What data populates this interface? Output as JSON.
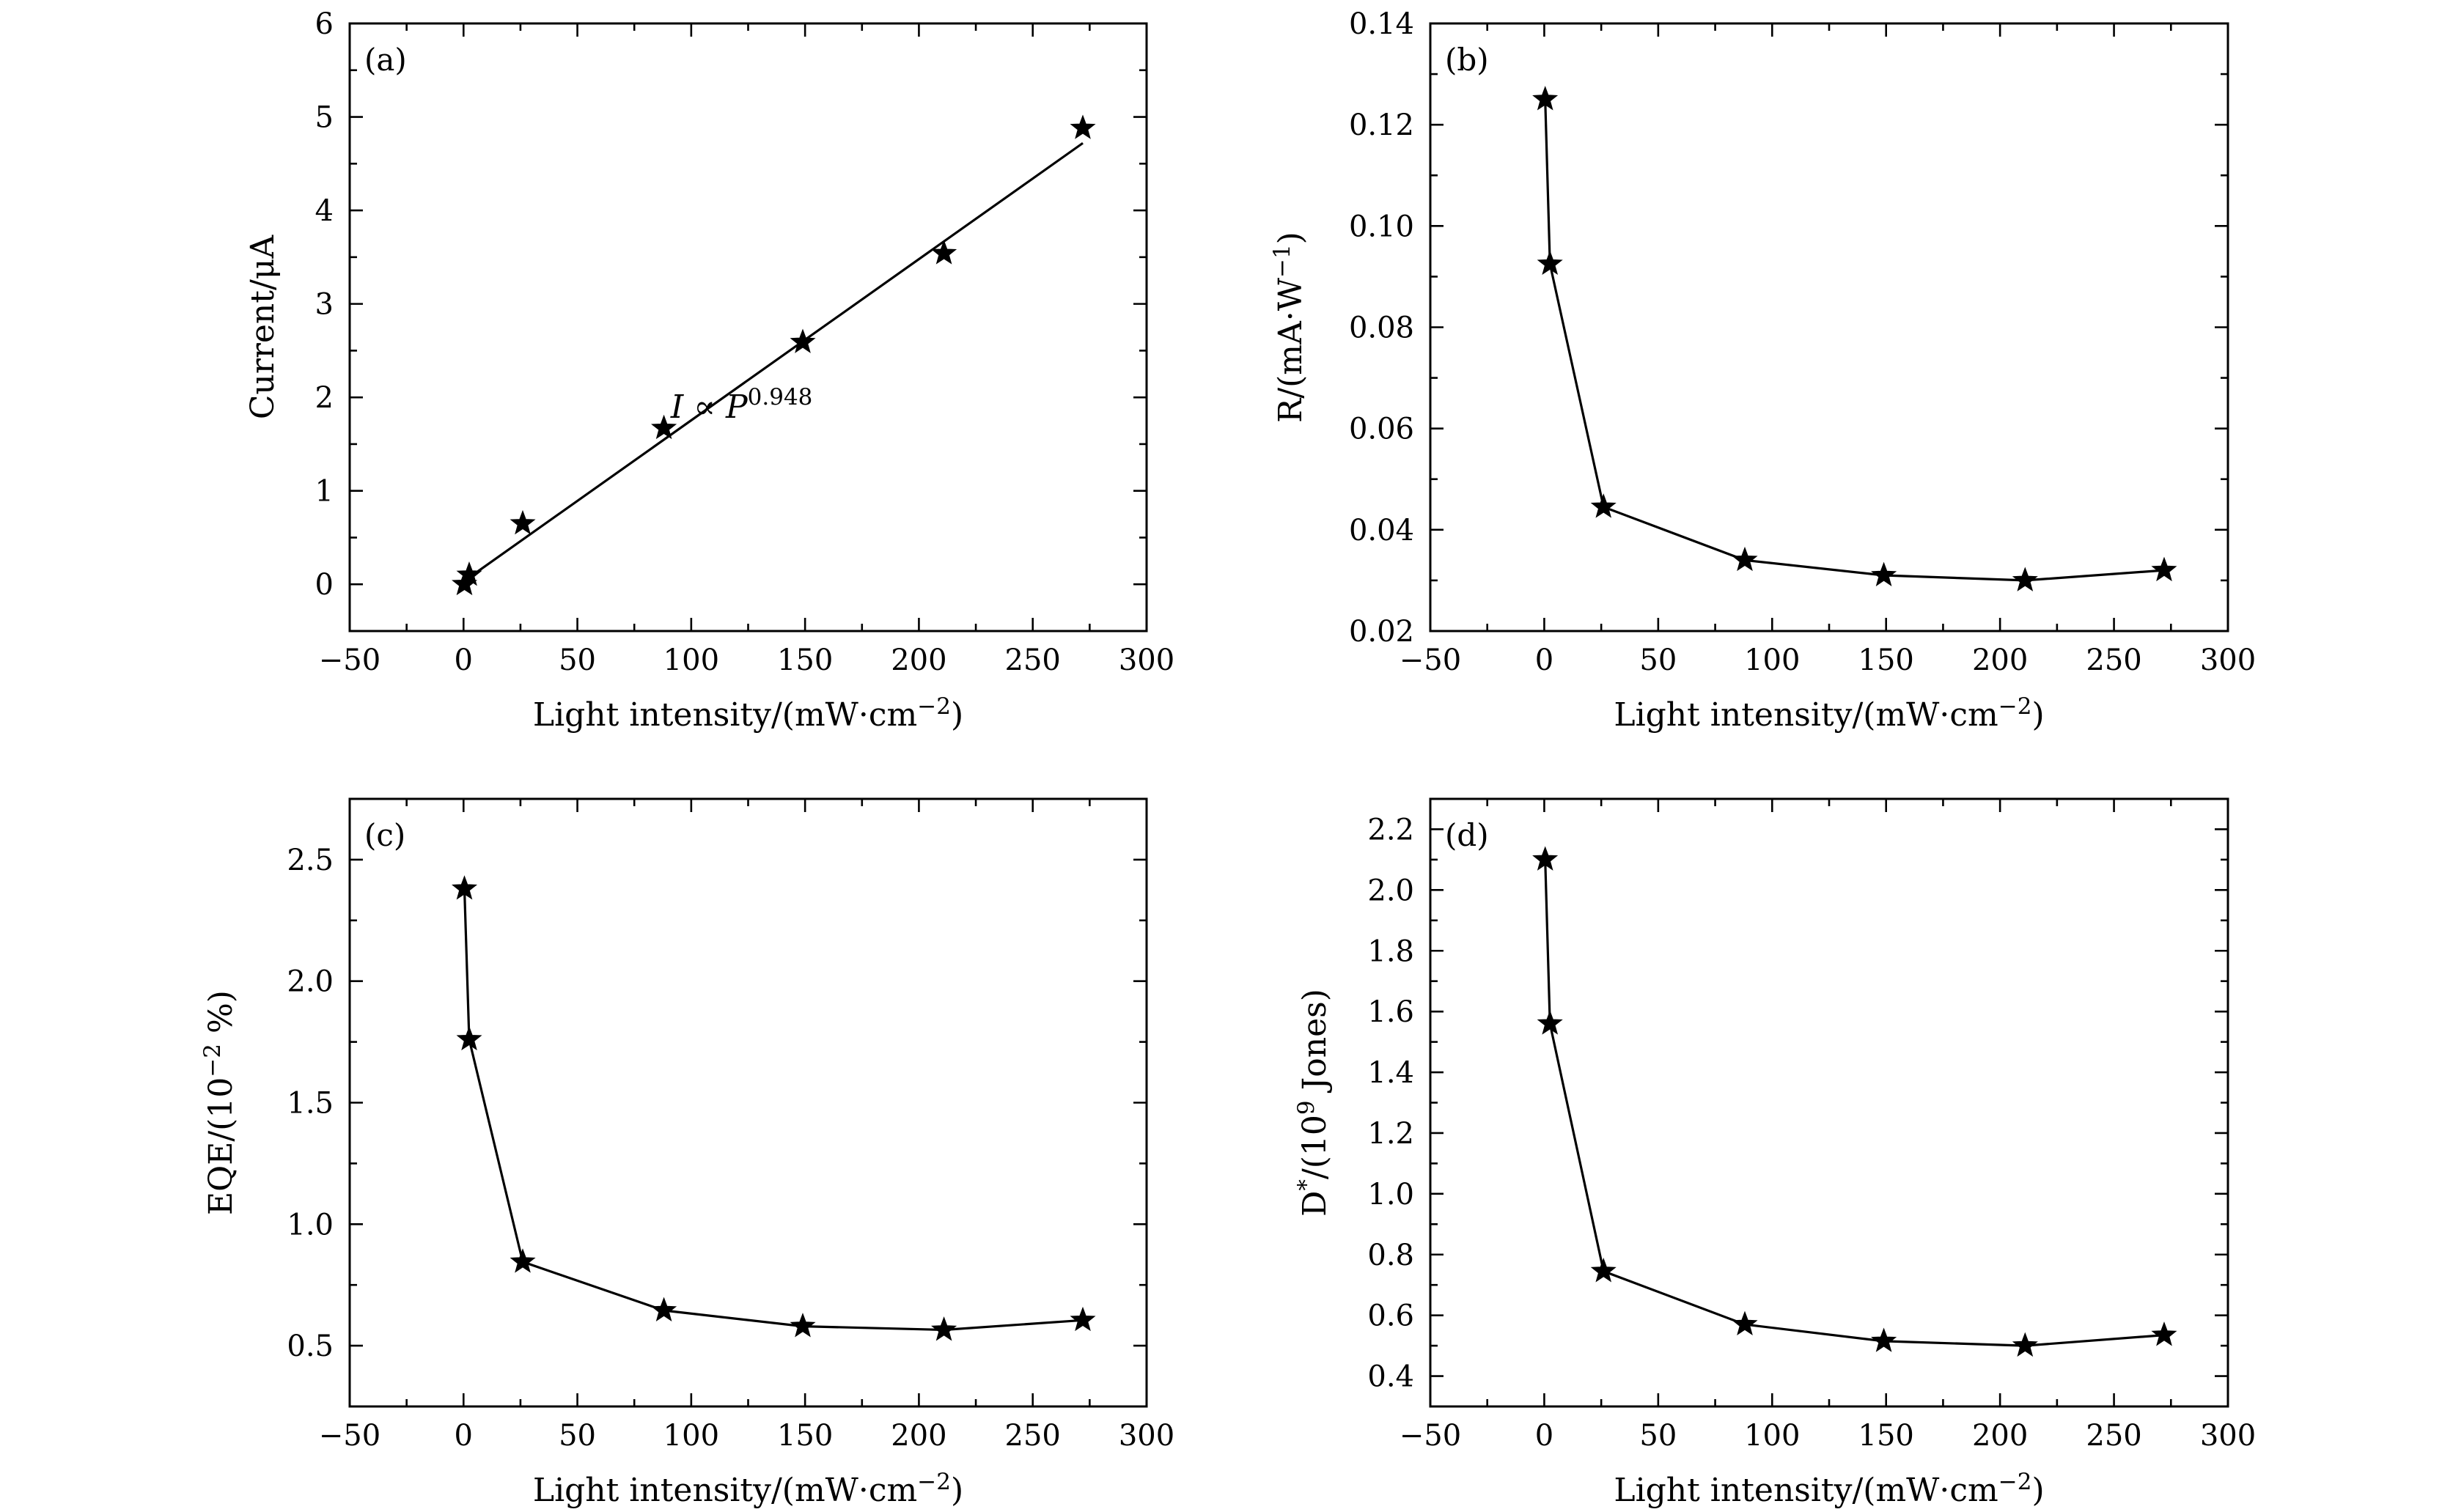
{
  "chart_data": [
    {
      "type": "scatter",
      "panel_label": "(a)",
      "xlabel": "Light intensity/(mW·cm⁻²)",
      "ylabel": "Current/μA",
      "xlim": [
        -50,
        300
      ],
      "ylim": [
        -0.5,
        6
      ],
      "xticks": [
        -50,
        0,
        50,
        100,
        150,
        200,
        250,
        300
      ],
      "yticks": [
        0,
        1,
        2,
        3,
        4,
        5,
        6
      ],
      "xtick_labels": [
        "−50",
        "0",
        "50",
        "100",
        "150",
        "200",
        "250",
        "300"
      ],
      "ytick_labels": [
        "0",
        "1",
        "2",
        "3",
        "4",
        "5",
        "6"
      ],
      "series": [
        {
          "x": [
            0.4,
            2.5,
            26,
            88,
            149,
            211,
            272
          ],
          "y": [
            0.0,
            0.1,
            0.65,
            1.67,
            2.59,
            3.54,
            4.88
          ]
        }
      ],
      "fit_line": {
        "x": [
          0,
          272
        ],
        "y": [
          0.03,
          4.72
        ]
      },
      "annotation": {
        "text": "I ∝ P",
        "superscript": "0.948"
      },
      "grid": false
    },
    {
      "type": "line",
      "panel_label": "(b)",
      "xlabel": "Light intensity/(mW·cm⁻²)",
      "ylabel": "R/(mA·W⁻¹)",
      "xlim": [
        -50,
        300
      ],
      "ylim": [
        0.02,
        0.14
      ],
      "xticks": [
        -50,
        0,
        50,
        100,
        150,
        200,
        250,
        300
      ],
      "yticks": [
        0.02,
        0.04,
        0.06,
        0.08,
        0.1,
        0.12,
        0.14
      ],
      "xtick_labels": [
        "−50",
        "0",
        "50",
        "100",
        "150",
        "200",
        "250",
        "300"
      ],
      "ytick_labels": [
        "0.02",
        "0.04",
        "0.06",
        "0.08",
        "0.10",
        "0.12",
        "0.14"
      ],
      "series": [
        {
          "x": [
            0.4,
            2.5,
            26,
            88,
            149,
            211,
            272
          ],
          "y": [
            0.125,
            0.0925,
            0.0445,
            0.034,
            0.031,
            0.03,
            0.032
          ]
        }
      ],
      "grid": false
    },
    {
      "type": "line",
      "panel_label": "(c)",
      "xlabel": "Light intensity/(mW·cm⁻²)",
      "ylabel": "EQE/(10⁻² %)",
      "xlim": [
        -50,
        300
      ],
      "ylim": [
        0.25,
        2.75
      ],
      "xticks": [
        -50,
        0,
        50,
        100,
        150,
        200,
        250,
        300
      ],
      "yticks": [
        0.5,
        1.0,
        1.5,
        2.0,
        2.5
      ],
      "xtick_labels": [
        "−50",
        "0",
        "50",
        "100",
        "150",
        "200",
        "250",
        "300"
      ],
      "ytick_labels": [
        "0.5",
        "1.0",
        "1.5",
        "2.0",
        "2.5"
      ],
      "series": [
        {
          "x": [
            0.4,
            2.5,
            26,
            88,
            149,
            211,
            272
          ],
          "y": [
            2.38,
            1.76,
            0.845,
            0.645,
            0.58,
            0.565,
            0.605
          ]
        }
      ],
      "grid": false
    },
    {
      "type": "line",
      "panel_label": "(d)",
      "xlabel": "Light intensity/(mW·cm⁻²)",
      "ylabel": "D*/(10⁹ Jones)",
      "xlim": [
        -50,
        300
      ],
      "ylim": [
        0.3,
        2.3
      ],
      "xticks": [
        -50,
        0,
        50,
        100,
        150,
        200,
        250,
        300
      ],
      "yticks": [
        0.4,
        0.6,
        0.8,
        1.0,
        1.2,
        1.4,
        1.6,
        1.8,
        2.0,
        2.2
      ],
      "xtick_labels": [
        "−50",
        "0",
        "50",
        "100",
        "150",
        "200",
        "250",
        "300"
      ],
      "ytick_labels": [
        "0.4",
        "0.6",
        "0.8",
        "1.0",
        "1.2",
        "1.4",
        "1.6",
        "1.8",
        "2.0",
        "2.2"
      ],
      "series": [
        {
          "x": [
            0.4,
            2.5,
            26,
            88,
            149,
            211,
            272
          ],
          "y": [
            2.1,
            1.56,
            0.745,
            0.57,
            0.515,
            0.5,
            0.535
          ]
        }
      ],
      "grid": false
    }
  ]
}
